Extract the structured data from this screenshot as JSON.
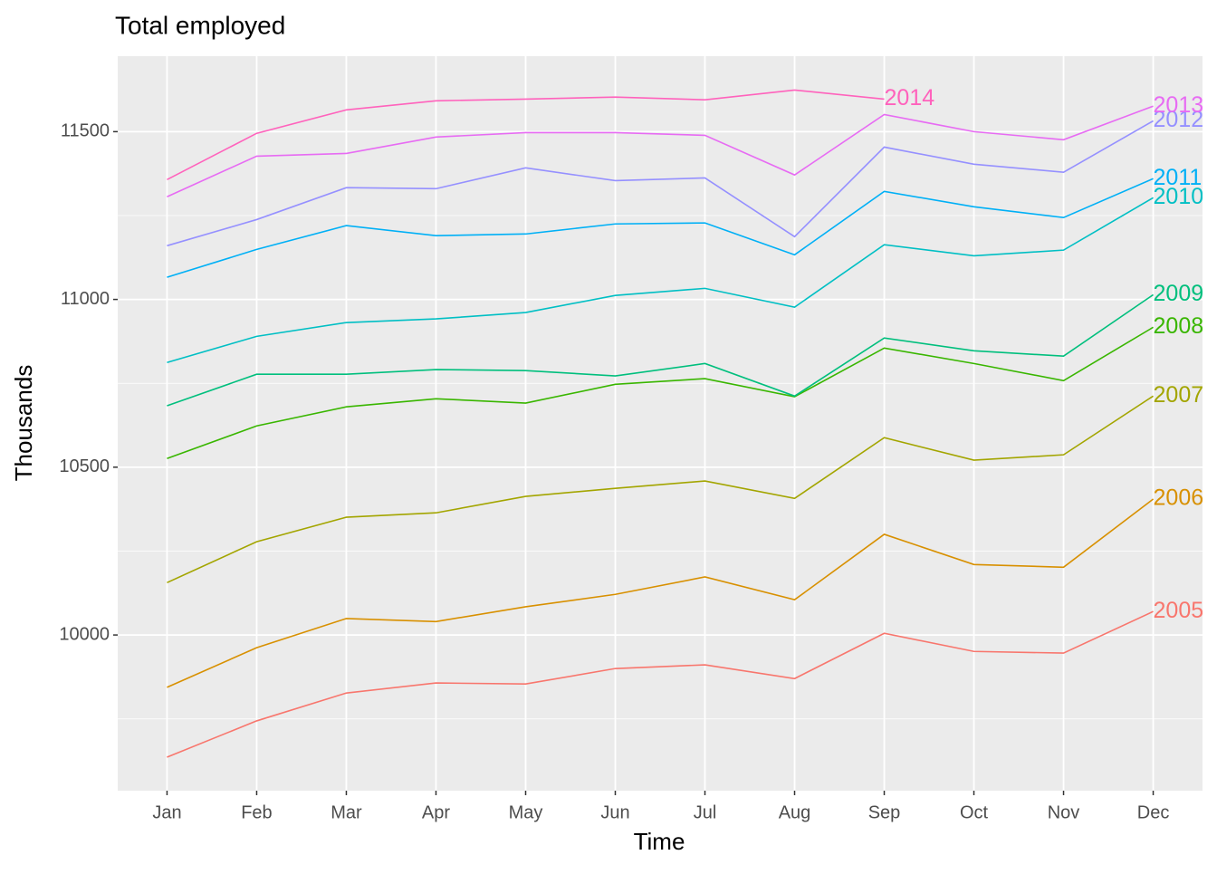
{
  "chart_data": {
    "type": "line",
    "title": "Total employed",
    "x_label": "Time",
    "y_label": "Thousands",
    "categories": [
      "Jan",
      "Feb",
      "Mar",
      "Apr",
      "May",
      "Jun",
      "Jul",
      "Aug",
      "Sep",
      "Oct",
      "Nov",
      "Dec"
    ],
    "series": [
      {
        "name": "2005",
        "color": "#F8766D",
        "values": [
          9636,
          9744,
          9827,
          9857,
          9854,
          9900,
          9911,
          9870,
          10005,
          9951,
          9946,
          10070
        ]
      },
      {
        "name": "2006",
        "color": "#D89000",
        "values": [
          9844,
          9962,
          10049,
          10040,
          10084,
          10121,
          10173,
          10105,
          10300,
          10210,
          10202,
          10405
        ]
      },
      {
        "name": "2007",
        "color": "#A3A500",
        "values": [
          10156,
          10278,
          10351,
          10364,
          10413,
          10437,
          10459,
          10407,
          10588,
          10521,
          10537,
          10712
        ]
      },
      {
        "name": "2008",
        "color": "#39B600",
        "values": [
          10526,
          10623,
          10680,
          10704,
          10691,
          10747,
          10764,
          10710,
          10855,
          10809,
          10758,
          10917
        ]
      },
      {
        "name": "2009",
        "color": "#00BF7D",
        "values": [
          10683,
          10777,
          10777,
          10791,
          10788,
          10772,
          10809,
          10712,
          10885,
          10847,
          10831,
          11014
        ]
      },
      {
        "name": "2010",
        "color": "#00BFC4",
        "values": [
          10812,
          10890,
          10931,
          10942,
          10961,
          11012,
          11033,
          10977,
          11163,
          11130,
          11147,
          11303
        ]
      },
      {
        "name": "2011",
        "color": "#00B0F6",
        "values": [
          11066,
          11149,
          11220,
          11190,
          11195,
          11225,
          11228,
          11133,
          11322,
          11276,
          11244,
          11360
        ]
      },
      {
        "name": "2012",
        "color": "#9590FF",
        "values": [
          11160,
          11238,
          11333,
          11330,
          11392,
          11354,
          11362,
          11187,
          11454,
          11403,
          11379,
          11532
        ]
      },
      {
        "name": "2013",
        "color": "#E76BF3",
        "values": [
          11306,
          11427,
          11435,
          11484,
          11497,
          11497,
          11489,
          11371,
          11551,
          11500,
          11476,
          11576
        ]
      },
      {
        "name": "2014",
        "color": "#FF62BC",
        "values": [
          11357,
          11495,
          11565,
          11592,
          11597,
          11603,
          11595,
          11624,
          11597,
          null,
          null,
          null
        ]
      }
    ],
    "ylim": [
      9536,
      11725
    ],
    "yticks": [
      10000,
      10500,
      11000,
      11500
    ],
    "y_minor_ticks": [
      9750,
      10250,
      10750,
      11250
    ],
    "grid": true
  }
}
